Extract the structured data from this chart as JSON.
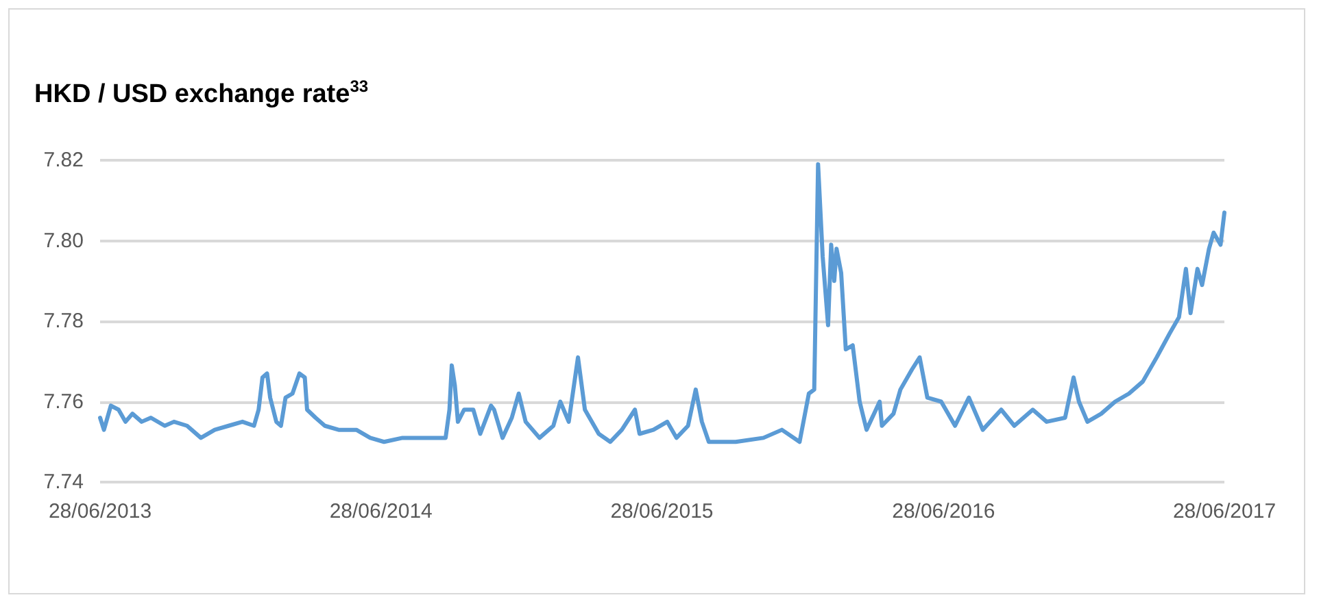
{
  "chart_data": {
    "type": "line",
    "title": "HKD / USD exchange rate$^{33}$",
    "x": [
      "2013-06-28",
      "2013-07-03",
      "2013-07-12",
      "2013-07-22",
      "2013-07-31",
      "2013-08-09",
      "2013-08-21",
      "2013-09-02",
      "2013-09-20",
      "2013-10-02",
      "2013-10-19",
      "2013-11-06",
      "2013-11-24",
      "2013-12-12",
      "2013-12-30",
      "2014-01-14",
      "2014-01-20",
      "2014-01-25",
      "2014-01-31",
      "2014-02-04",
      "2014-02-12",
      "2014-02-18",
      "2014-02-24",
      "2014-03-05",
      "2014-03-14",
      "2014-03-21",
      "2014-03-24",
      "2014-04-04",
      "2014-04-16",
      "2014-05-04",
      "2014-05-27",
      "2014-06-14",
      "2014-07-02",
      "2014-07-26",
      "2014-08-24",
      "2014-09-20",
      "2014-09-25",
      "2014-09-28",
      "2014-10-02",
      "2014-10-06",
      "2014-10-14",
      "2014-10-26",
      "2014-11-04",
      "2014-11-18",
      "2014-11-22",
      "2014-12-03",
      "2014-12-15",
      "2014-12-24",
      "2015-01-02",
      "2015-01-20",
      "2015-02-07",
      "2015-02-16",
      "2015-02-27",
      "2015-03-11",
      "2015-03-20",
      "2015-04-07",
      "2015-04-22",
      "2015-05-07",
      "2015-05-24",
      "2015-05-30",
      "2015-06-17",
      "2015-07-05",
      "2015-07-17",
      "2015-08-01",
      "2015-08-11",
      "2015-08-19",
      "2015-08-28",
      "2015-10-02",
      "2015-11-07",
      "2015-12-01",
      "2015-12-24",
      "2016-01-05",
      "2016-01-12",
      "2016-01-17",
      "2016-01-23",
      "2016-01-30",
      "2016-02-03",
      "2016-02-07",
      "2016-02-10",
      "2016-02-16",
      "2016-02-22",
      "2016-03-02",
      "2016-03-11",
      "2016-03-20",
      "2016-04-06",
      "2016-04-09",
      "2016-04-24",
      "2016-05-03",
      "2016-05-18",
      "2016-05-28",
      "2016-06-07",
      "2016-06-25",
      "2016-07-13",
      "2016-07-31",
      "2016-08-18",
      "2016-09-11",
      "2016-09-28",
      "2016-10-22",
      "2016-11-09",
      "2016-12-03",
      "2016-12-14",
      "2016-12-21",
      "2017-01-01",
      "2017-01-19",
      "2017-02-06",
      "2017-02-24",
      "2017-03-14",
      "2017-04-01",
      "2017-04-18",
      "2017-04-30",
      "2017-05-09",
      "2017-05-15",
      "2017-05-24",
      "2017-05-30",
      "2017-06-08",
      "2017-06-14",
      "2017-06-23",
      "2017-06-28"
    ],
    "series": [
      {
        "color": "#5b9bd5",
        "values": [
          7.756,
          7.753,
          7.759,
          7.758,
          7.755,
          7.757,
          7.755,
          7.756,
          7.754,
          7.755,
          7.754,
          7.751,
          7.753,
          7.754,
          7.755,
          7.754,
          7.758,
          7.766,
          7.767,
          7.761,
          7.755,
          7.754,
          7.761,
          7.762,
          7.767,
          7.766,
          7.758,
          7.756,
          7.754,
          7.753,
          7.753,
          7.751,
          7.75,
          7.751,
          7.751,
          7.751,
          7.758,
          7.769,
          7.764,
          7.755,
          7.758,
          7.758,
          7.752,
          7.759,
          7.758,
          7.751,
          7.756,
          7.762,
          7.755,
          7.751,
          7.754,
          7.76,
          7.755,
          7.771,
          7.758,
          7.752,
          7.75,
          7.753,
          7.758,
          7.752,
          7.753,
          7.755,
          7.751,
          7.754,
          7.763,
          7.755,
          7.75,
          7.75,
          7.751,
          7.753,
          7.75,
          7.762,
          7.763,
          7.819,
          7.796,
          7.779,
          7.799,
          7.79,
          7.798,
          7.792,
          7.773,
          7.774,
          7.76,
          7.753,
          7.76,
          7.754,
          7.757,
          7.763,
          7.768,
          7.771,
          7.761,
          7.76,
          7.754,
          7.761,
          7.753,
          7.758,
          7.754,
          7.758,
          7.755,
          7.756,
          7.766,
          7.76,
          7.755,
          7.757,
          7.76,
          7.762,
          7.765,
          7.771,
          7.777,
          7.781,
          7.793,
          7.782,
          7.793,
          7.789,
          7.798,
          7.802,
          7.799,
          7.807
        ]
      }
    ],
    "xlim": [
      "2013-06-28",
      "2017-06-28"
    ],
    "xticks": [
      {
        "value": "2013-06-28",
        "label": "28/06/2013"
      },
      {
        "value": "2014-06-28",
        "label": "28/06/2014"
      },
      {
        "value": "2015-06-28",
        "label": "28/06/2015"
      },
      {
        "value": "2016-06-28",
        "label": "28/06/2016"
      },
      {
        "value": "2017-06-28",
        "label": "28/06/2017"
      }
    ],
    "ylim": [
      7.74,
      7.82
    ],
    "yticks": [
      {
        "value": 7.74,
        "label": "7.74"
      },
      {
        "value": 7.76,
        "label": "7.76"
      },
      {
        "value": 7.78,
        "label": "7.78"
      },
      {
        "value": 7.8,
        "label": "7.80"
      },
      {
        "value": 7.82,
        "label": "7.82"
      }
    ],
    "grid": "y",
    "marker": "none",
    "line_style": "solid"
  }
}
